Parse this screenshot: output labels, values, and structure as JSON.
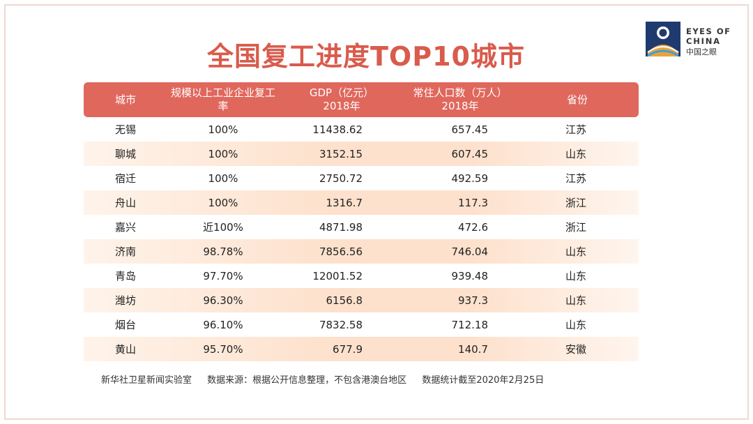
{
  "title": "全国复工进度TOP10城市",
  "logo": {
    "line1": "EYES OF",
    "line2": "CHINA",
    "line3": "中国之眼"
  },
  "table": {
    "headers": {
      "city": "城市",
      "rate": "规模以上工业企业复工率",
      "gdp_line1": "GDP（亿元）",
      "gdp_line2": "2018年",
      "pop_line1": "常住人口数（万人）",
      "pop_line2": "2018年",
      "province": "省份"
    }
  },
  "chart_data": {
    "type": "table",
    "title": "全国复工进度TOP10城市",
    "columns": [
      "城市",
      "规模以上工业企业复工率",
      "GDP（亿元）2018年",
      "常住人口数（万人）2018年",
      "省份"
    ],
    "rows": [
      [
        "无锡",
        "100%",
        "11438.62",
        "657.45",
        "江苏"
      ],
      [
        "聊城",
        "100%",
        "3152.15",
        "607.45",
        "山东"
      ],
      [
        "宿迁",
        "100%",
        "2750.72",
        "492.59",
        "江苏"
      ],
      [
        "舟山",
        "100%",
        "1316.7",
        "117.3",
        "浙江"
      ],
      [
        "嘉兴",
        "近100%",
        "4871.98",
        "472.6",
        "浙江"
      ],
      [
        "济南",
        "98.78%",
        "7856.56",
        "746.04",
        "山东"
      ],
      [
        "青岛",
        "97.70%",
        "12001.52",
        "939.48",
        "山东"
      ],
      [
        "潍坊",
        "96.30%",
        "6156.8",
        "937.3",
        "山东"
      ],
      [
        "烟台",
        "96.10%",
        "7832.58",
        "712.18",
        "山东"
      ],
      [
        "黄山",
        "95.70%",
        "677.9",
        "140.7",
        "安徽"
      ]
    ]
  },
  "footer": {
    "source1": "新华社卫星新闻实验室",
    "source2": "数据来源：根据公开信息整理，不包含港澳台地区",
    "source3": "数据统计截至2020年2月25日"
  },
  "colors": {
    "title": "#d95b4c",
    "header_bg": "#e0675c",
    "row_stripe": "#fde1cc",
    "frame": "#efd9d0"
  }
}
